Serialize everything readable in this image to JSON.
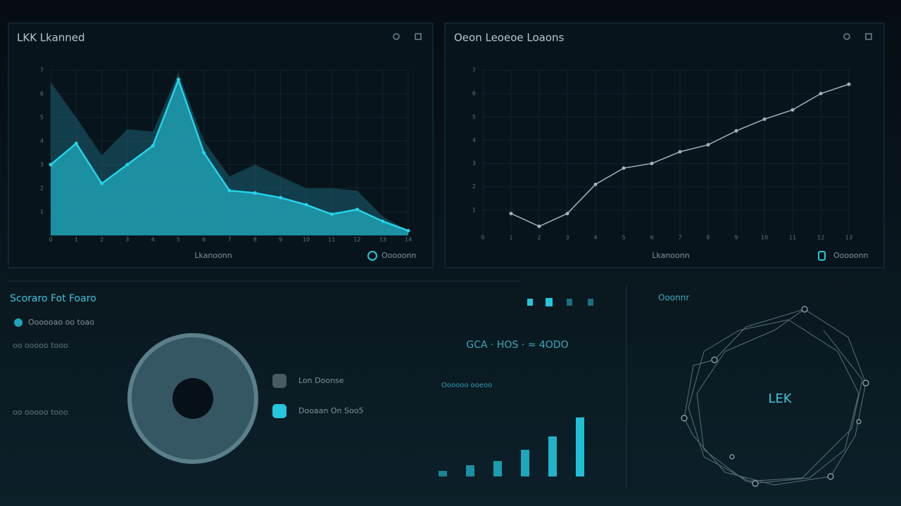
{
  "panels": [
    {
      "title": "LKK Lkanned",
      "footer": "Lkanoonn",
      "legend": "Ooooonn",
      "chart": {
        "type": "line",
        "x": [
          0,
          1,
          2,
          3,
          4,
          5,
          6,
          7,
          8,
          9,
          10,
          11,
          12,
          13,
          14
        ],
        "series": [
          {
            "color": "#1f6f84",
            "values": [
              6.5,
              5.0,
              3.4,
              4.5,
              4.4,
              6.9,
              4.0,
              2.5,
              3.0,
              2.5,
              2.0,
              2.0,
              1.9,
              0.8,
              0.2
            ]
          },
          {
            "color": "#25d3ea",
            "values": [
              3.0,
              3.9,
              2.2,
              3.0,
              3.8,
              6.6,
              3.5,
              1.9,
              1.8,
              1.6,
              1.3,
              0.9,
              1.1,
              0.6,
              0.2
            ]
          }
        ],
        "xlim": [
          0,
          14
        ],
        "xticks": [
          0,
          1,
          2,
          3,
          4,
          5,
          6,
          7,
          8,
          9,
          10,
          11,
          12,
          13,
          14
        ],
        "ylim": [
          0,
          7
        ],
        "yticks": [
          1,
          2,
          3,
          4,
          5,
          6,
          7
        ],
        "grid": true
      }
    },
    {
      "title": "Oeon Leoeoe Loaons",
      "footer": "Lkanoonn",
      "legend": "Ooooonn",
      "chart": {
        "type": "line",
        "x": [
          1,
          2,
          3,
          4,
          5,
          6,
          7,
          8,
          9,
          10,
          11,
          12,
          13
        ],
        "series": [
          {
            "color": "#9fb4bd",
            "values": [
              0.85,
              0.3,
              0.85,
              2.1,
              2.8,
              3.0,
              3.5,
              3.8,
              4.4,
              4.9,
              5.3,
              6.0,
              6.4
            ]
          }
        ],
        "xlim": [
          0,
          13
        ],
        "xticks": [
          0,
          1,
          2,
          3,
          4,
          5,
          6,
          7,
          8,
          9,
          10,
          11,
          12,
          13
        ],
        "ylim": [
          0,
          7
        ],
        "yticks": [
          1,
          2,
          3,
          4,
          5,
          6,
          7
        ],
        "grid": true
      }
    }
  ],
  "summary": {
    "title": "Scoraro Fot Foaro",
    "items": [
      "Oooooao oo toao",
      "oo ooooo tooo",
      "oo ooooo tooo"
    ],
    "legend": [
      {
        "name": "Lon Doonse",
        "color": "#4a5a62"
      },
      {
        "name": "Dooaan On Soo5",
        "color": "#25c6de"
      }
    ],
    "headline": "GCA · HOS · ≈ 4ODO",
    "bars": {
      "type": "bar",
      "title": "Oooooo ooeoo",
      "values": [
        8,
        16,
        22,
        38,
        57,
        84
      ],
      "color": "#22c8e0",
      "ylim": [
        0,
        100
      ]
    }
  },
  "network": {
    "title": "Ooonnr",
    "center": "LEK"
  }
}
